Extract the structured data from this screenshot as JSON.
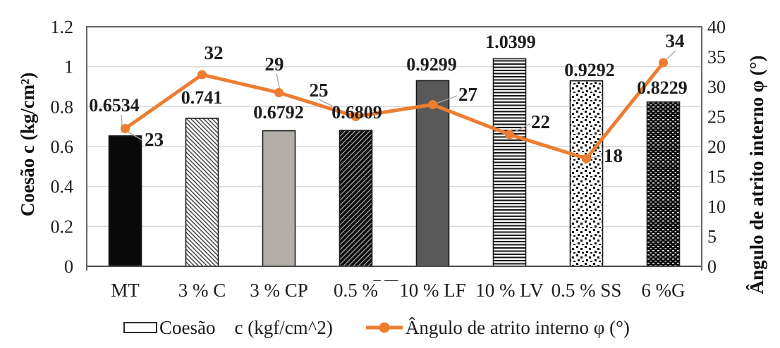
{
  "chart_data": {
    "type": "bar",
    "subtype": "combo-bar-line-dual-axis",
    "categories": [
      "MT",
      "3 % C",
      "3 % CP",
      "0.5 %",
      "10 % LF",
      "10 % LV",
      "0.5 % SS",
      "6 %G"
    ],
    "x_axis_artifact": "‾ ‾‾",
    "series": [
      {
        "name": "Coesão c (kgf/cm^2)",
        "type": "bar",
        "axis": "left",
        "values": [
          0.6534,
          0.741,
          0.6792,
          0.6809,
          0.9299,
          1.0399,
          0.9292,
          0.8229
        ],
        "data_labels": [
          "0.6534",
          "0.741",
          "0.6792",
          "0.6809",
          "0.9299",
          "1.0399",
          "0.9292",
          "0.8229"
        ],
        "bar_styles": [
          "solid-black",
          "diagonal-hatch-light",
          "solid-light-gray",
          "diagonal-hatch-heavy",
          "solid-dark-gray",
          "horizontal-lines",
          "sparse-dots",
          "dense-dark-dots"
        ]
      },
      {
        "name": "Ângulo de atrito interno φ (°)",
        "type": "line",
        "axis": "right",
        "values": [
          23,
          32,
          29,
          25,
          27,
          22,
          18,
          34
        ],
        "data_labels": [
          "23",
          "32",
          "29",
          "25",
          "27",
          "22",
          "18",
          "34"
        ]
      }
    ],
    "left_axis": {
      "title": "Coesão c (kg/cm²)",
      "min": 0,
      "max": 1.2,
      "ticks": [
        "1.2",
        "1",
        "0.8",
        "0.6",
        "0.4",
        "0.2",
        "0"
      ]
    },
    "right_axis": {
      "title": "Ângulo de atrito interno φ (°)",
      "min": 0,
      "max": 40,
      "ticks": [
        "40",
        "35",
        "30",
        "25",
        "20",
        "15",
        "10",
        "5",
        "0"
      ]
    },
    "legend": {
      "position": "bottom",
      "items": [
        {
          "label_part1": "Coesão",
          "label_part2": "c (kgf/cm^2)",
          "swatch": "bar-outline"
        },
        {
          "label": "Ângulo de atrito interno φ (°)",
          "swatch": "orange-line-marker"
        }
      ]
    },
    "grid": "horizontal-light-gray",
    "colors": {
      "line_series": "#ED7D31",
      "gridline": "#D9D9D9",
      "plot_border": "#666666",
      "bar_solid_black": "#0a0a0a",
      "bar_light_gray": "#B3AEA8",
      "bar_dark_gray": "#595959",
      "leader_line": "#A6A6A6",
      "text": "#1c1c1c"
    }
  }
}
